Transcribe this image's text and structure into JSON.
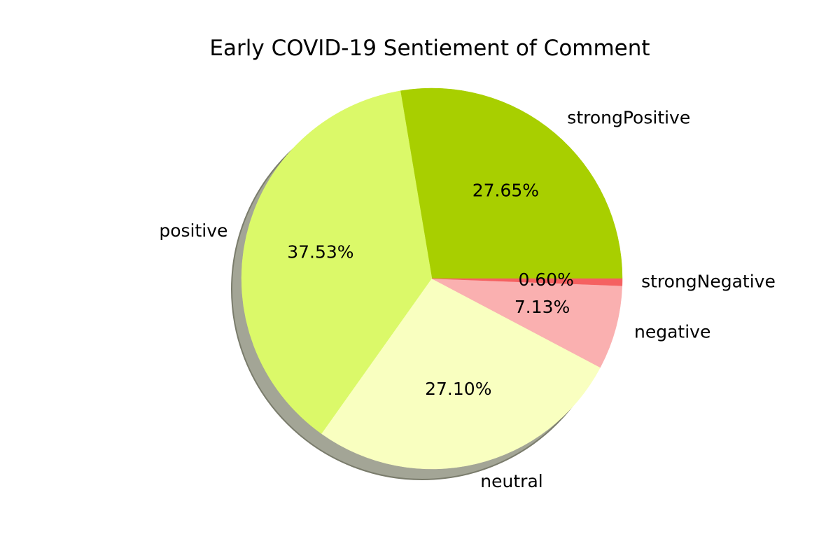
{
  "chart_data": {
    "type": "pie",
    "title": "Early COVID-19 Sentiement of Comment",
    "start_angle_deg": 0,
    "direction": "counterclockwise",
    "shadow": true,
    "slices": [
      {
        "label": "strongPositive",
        "value": 27.65,
        "pct_label": "27.65%",
        "color": "#a8cf00"
      },
      {
        "label": "positive",
        "value": 37.53,
        "pct_label": "37.53%",
        "color": "#dbf969"
      },
      {
        "label": "neutral",
        "value": 27.1,
        "pct_label": "27.10%",
        "color": "#f9ffc0"
      },
      {
        "label": "negative",
        "value": 7.13,
        "pct_label": "7.13%",
        "color": "#fab0b0"
      },
      {
        "label": "strongNegative",
        "value": 0.6,
        "pct_label": "0.60%",
        "color": "#f56161"
      }
    ]
  }
}
